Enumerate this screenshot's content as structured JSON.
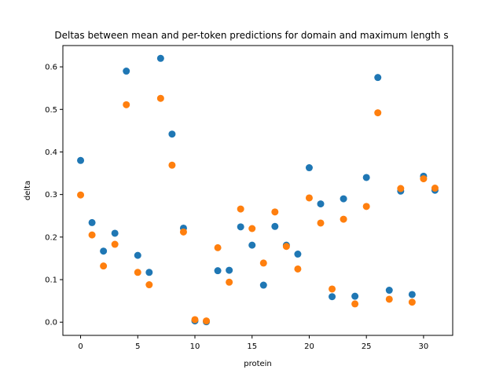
{
  "chart_data": {
    "type": "scatter",
    "title": "Deltas between mean and per-token predictions for domain and maximum length s",
    "xlabel": "protein",
    "ylabel": "delta",
    "xlim": [
      -1.55,
      32.55
    ],
    "ylim": [
      -0.031,
      0.65
    ],
    "grid": false,
    "legend": "none",
    "x_ticks": [
      0,
      5,
      10,
      15,
      20,
      25,
      30
    ],
    "y_ticks": [
      0.0,
      0.1,
      0.2,
      0.3,
      0.4,
      0.5,
      0.6
    ],
    "y_tick_labels": [
      "0.0",
      "0.1",
      "0.2",
      "0.3",
      "0.4",
      "0.5",
      "0.6"
    ],
    "x": [
      0,
      1,
      2,
      3,
      4,
      5,
      6,
      7,
      8,
      9,
      10,
      11,
      12,
      13,
      14,
      15,
      16,
      17,
      18,
      19,
      20,
      21,
      22,
      23,
      24,
      25,
      26,
      27,
      28,
      29,
      30,
      31
    ],
    "series": [
      {
        "color": "#1f77b4",
        "values": [
          0.38,
          0.234,
          0.167,
          0.209,
          0.59,
          0.157,
          0.117,
          0.62,
          0.442,
          0.221,
          0.003,
          0.001,
          0.121,
          0.122,
          0.224,
          0.181,
          0.087,
          0.225,
          0.181,
          0.16,
          0.363,
          0.278,
          0.06,
          0.29,
          0.061,
          0.34,
          0.575,
          0.075,
          0.308,
          0.065,
          0.343,
          0.31
        ]
      },
      {
        "color": "#ff7f0e",
        "values": [
          0.299,
          0.205,
          0.132,
          0.183,
          0.511,
          0.117,
          0.088,
          0.526,
          0.369,
          0.212,
          0.006,
          0.003,
          0.175,
          0.094,
          0.266,
          0.22,
          0.139,
          0.259,
          0.178,
          0.125,
          0.292,
          0.233,
          0.078,
          0.242,
          0.043,
          0.272,
          0.492,
          0.054,
          0.314,
          0.047,
          0.337,
          0.315
        ]
      }
    ]
  }
}
